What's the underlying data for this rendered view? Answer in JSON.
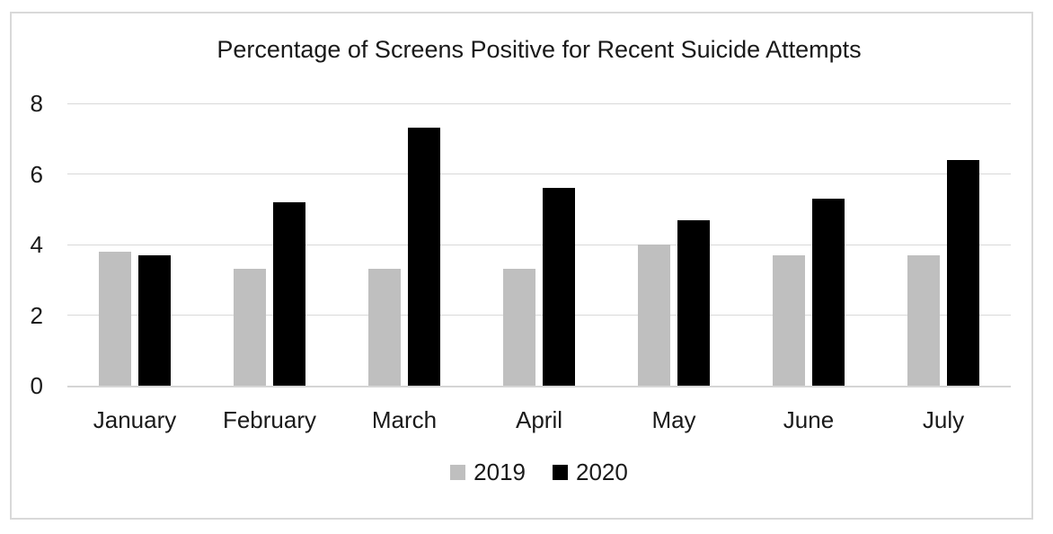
{
  "chart_data": {
    "type": "bar",
    "title": "Percentage of Screens Positive for Recent Suicide Attempts",
    "categories": [
      "January",
      "February",
      "March",
      "April",
      "May",
      "June",
      "July"
    ],
    "series": [
      {
        "name": "2019",
        "color": "#bfbfbf",
        "values": [
          3.8,
          3.3,
          3.3,
          3.3,
          4.0,
          3.7,
          3.7
        ]
      },
      {
        "name": "2020",
        "color": "#000000",
        "values": [
          3.7,
          5.2,
          7.3,
          5.6,
          4.7,
          5.3,
          6.4
        ]
      }
    ],
    "xlabel": "",
    "ylabel": "",
    "ylim": [
      0,
      8
    ],
    "yticks": [
      0,
      2,
      4,
      6,
      8
    ],
    "grid": true,
    "legend_position": "bottom",
    "colors": {
      "gridline": "#d9d9d9",
      "frame_border": "#d9d9d9",
      "text": "#1a1a1a",
      "background": "#ffffff"
    }
  }
}
